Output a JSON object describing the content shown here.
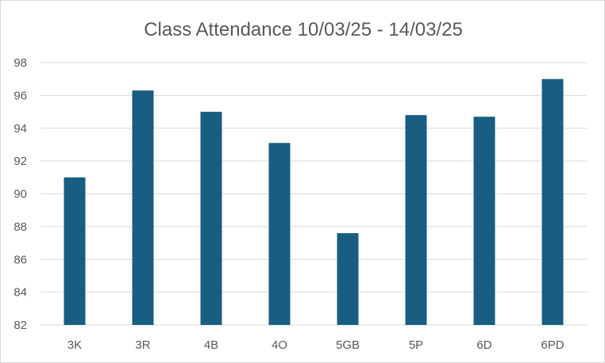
{
  "chart_data": {
    "type": "bar",
    "title": "Class Attendance 10/03/25 - 14/03/25",
    "categories": [
      "3K",
      "3R",
      "4B",
      "4O",
      "5GB",
      "5P",
      "6D",
      "6PD"
    ],
    "values": [
      91.0,
      96.3,
      95.0,
      93.1,
      87.6,
      94.8,
      94.7,
      97.0
    ],
    "xlabel": "",
    "ylabel": "",
    "ylim": [
      82,
      98
    ],
    "yticks": [
      82,
      84,
      86,
      88,
      90,
      92,
      94,
      96,
      98
    ],
    "grid": true,
    "legend": "none",
    "bar_color": "#175E80"
  }
}
